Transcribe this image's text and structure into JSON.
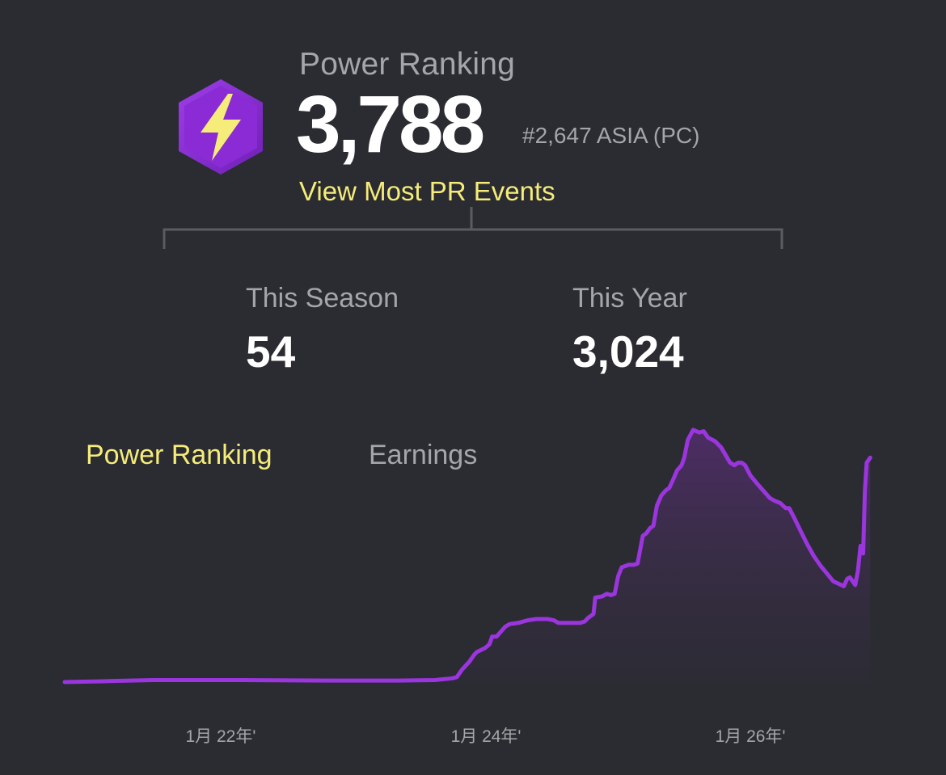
{
  "header": {
    "label": "Power Ranking",
    "value": "3,788",
    "rank": "#2,647 ASIA (PC)",
    "link": "View Most PR Events",
    "badge_icon": "lightning-bolt-icon",
    "badge_color": "#8a2bd6",
    "bolt_color": "#f5ec7a"
  },
  "stats": [
    {
      "label": "This Season",
      "value": "54"
    },
    {
      "label": "This Year",
      "value": "3,024"
    }
  ],
  "tabs": [
    {
      "label": "Power Ranking",
      "active": true
    },
    {
      "label": "Earnings",
      "active": false
    }
  ],
  "colors": {
    "background": "#2a2c31",
    "accent_yellow": "#f5ec7a",
    "line": "#9b35dd",
    "muted_text": "#a5a6a9"
  },
  "chart_data": {
    "type": "area",
    "x_ticks": [
      "1月 22年'",
      "1月 24年'",
      "1月 26年'"
    ],
    "x_tick_positions": [
      0.177,
      0.478,
      0.778
    ],
    "y_axis_visible": false,
    "grid": false,
    "points": [
      [
        0.0,
        0.0
      ],
      [
        0.05,
        0.004
      ],
      [
        0.1,
        0.008
      ],
      [
        0.2,
        0.008
      ],
      [
        0.3,
        0.006
      ],
      [
        0.38,
        0.006
      ],
      [
        0.42,
        0.008
      ],
      [
        0.44,
        0.015
      ],
      [
        0.445,
        0.02
      ],
      [
        0.451,
        0.05
      ],
      [
        0.459,
        0.08
      ],
      [
        0.465,
        0.11
      ],
      [
        0.468,
        0.12
      ],
      [
        0.477,
        0.135
      ],
      [
        0.482,
        0.15
      ],
      [
        0.485,
        0.18
      ],
      [
        0.49,
        0.18
      ],
      [
        0.5,
        0.22
      ],
      [
        0.505,
        0.23
      ],
      [
        0.515,
        0.235
      ],
      [
        0.525,
        0.245
      ],
      [
        0.535,
        0.25
      ],
      [
        0.548,
        0.25
      ],
      [
        0.555,
        0.245
      ],
      [
        0.56,
        0.235
      ],
      [
        0.575,
        0.235
      ],
      [
        0.585,
        0.235
      ],
      [
        0.59,
        0.24
      ],
      [
        0.594,
        0.255
      ],
      [
        0.6,
        0.27
      ],
      [
        0.602,
        0.335
      ],
      [
        0.61,
        0.34
      ],
      [
        0.615,
        0.35
      ],
      [
        0.62,
        0.345
      ],
      [
        0.624,
        0.35
      ],
      [
        0.628,
        0.42
      ],
      [
        0.632,
        0.455
      ],
      [
        0.64,
        0.465
      ],
      [
        0.646,
        0.465
      ],
      [
        0.65,
        0.47
      ],
      [
        0.656,
        0.58
      ],
      [
        0.66,
        0.59
      ],
      [
        0.664,
        0.61
      ],
      [
        0.668,
        0.62
      ],
      [
        0.672,
        0.7
      ],
      [
        0.677,
        0.74
      ],
      [
        0.682,
        0.76
      ],
      [
        0.686,
        0.77
      ],
      [
        0.69,
        0.8
      ],
      [
        0.695,
        0.84
      ],
      [
        0.7,
        0.86
      ],
      [
        0.703,
        0.89
      ],
      [
        0.707,
        0.96
      ],
      [
        0.713,
        1.0
      ],
      [
        0.72,
        0.99
      ],
      [
        0.725,
        0.995
      ],
      [
        0.73,
        0.97
      ],
      [
        0.738,
        0.955
      ],
      [
        0.745,
        0.93
      ],
      [
        0.75,
        0.9
      ],
      [
        0.755,
        0.87
      ],
      [
        0.76,
        0.86
      ],
      [
        0.764,
        0.87
      ],
      [
        0.768,
        0.87
      ],
      [
        0.772,
        0.86
      ],
      [
        0.778,
        0.82
      ],
      [
        0.785,
        0.79
      ],
      [
        0.79,
        0.77
      ],
      [
        0.795,
        0.75
      ],
      [
        0.8,
        0.73
      ],
      [
        0.805,
        0.72
      ],
      [
        0.812,
        0.71
      ],
      [
        0.818,
        0.69
      ],
      [
        0.822,
        0.69
      ],
      [
        0.828,
        0.65
      ],
      [
        0.835,
        0.6
      ],
      [
        0.842,
        0.55
      ],
      [
        0.85,
        0.5
      ],
      [
        0.858,
        0.46
      ],
      [
        0.865,
        0.43
      ],
      [
        0.872,
        0.4
      ],
      [
        0.878,
        0.39
      ],
      [
        0.884,
        0.38
      ],
      [
        0.888,
        0.41
      ],
      [
        0.891,
        0.415
      ],
      [
        0.894,
        0.4
      ],
      [
        0.897,
        0.385
      ],
      [
        0.9,
        0.44
      ],
      [
        0.903,
        0.54
      ],
      [
        0.906,
        0.51
      ],
      [
        0.908,
        0.76
      ],
      [
        0.91,
        0.87
      ],
      [
        0.912,
        0.88
      ],
      [
        0.914,
        0.89
      ]
    ]
  }
}
